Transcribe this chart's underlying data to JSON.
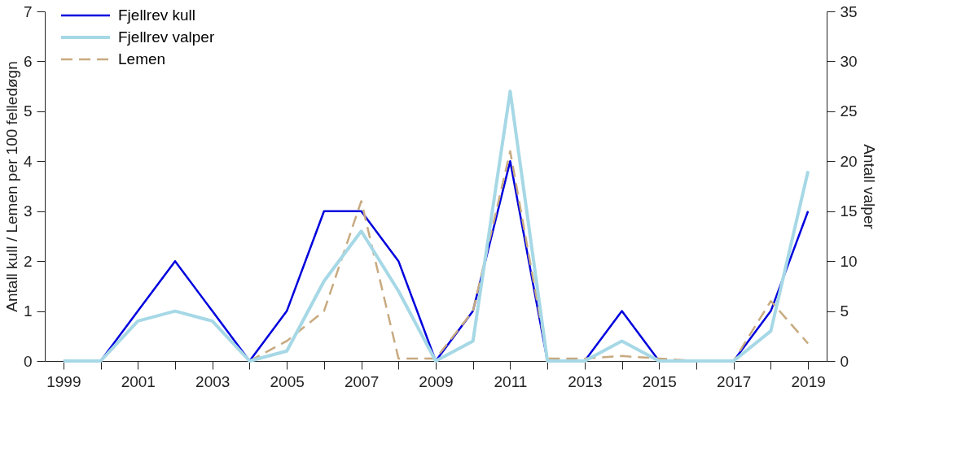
{
  "chart_data": {
    "type": "line",
    "x": [
      1999,
      2000,
      2001,
      2002,
      2003,
      2004,
      2005,
      2006,
      2007,
      2008,
      2009,
      2010,
      2011,
      2012,
      2013,
      2014,
      2015,
      2016,
      2017,
      2018,
      2019
    ],
    "ylabel": "Antall kull / Lemen per 100 felledøgn",
    "y2label": "Antall valper",
    "xlim": [
      1998.5,
      2019.5
    ],
    "xticks": [
      1999,
      {
        "value": 2000,
        "label": null
      },
      2001,
      {
        "value": 2002,
        "label": null
      },
      2003,
      {
        "value": 2004,
        "label": null
      },
      2005,
      {
        "value": 2006,
        "label": null
      },
      2007,
      {
        "value": 2008,
        "label": null
      },
      2009,
      {
        "value": 2010,
        "label": null
      },
      2011,
      {
        "value": 2012,
        "label": null
      },
      2013,
      {
        "value": 2014,
        "label": null
      },
      2015,
      {
        "value": 2016,
        "label": null
      },
      2017,
      {
        "value": 2018,
        "label": null
      },
      2019
    ],
    "ylim": [
      0,
      7
    ],
    "yticks": [
      0,
      1,
      2,
      3,
      4,
      5,
      6,
      7
    ],
    "y2lim": [
      0,
      35
    ],
    "y2ticks": [
      0,
      5,
      10,
      15,
      20,
      25,
      30,
      35
    ],
    "grid": false,
    "legend": "top left",
    "marker": "none",
    "series": [
      {
        "name": "Fjellrev kull",
        "color": "#0000dd",
        "line_style": "solid",
        "values": [
          0,
          0,
          1,
          2,
          1,
          0,
          1,
          3,
          3,
          2,
          0,
          1,
          4,
          0,
          0,
          1,
          0,
          0,
          0,
          1,
          3
        ]
      },
      {
        "name": "Fjellrev valper",
        "color": "#a6d8e6",
        "line_style": "solid",
        "axis": "y2",
        "values": [
          0,
          0,
          4,
          5,
          4,
          0,
          1,
          8,
          13,
          7,
          0,
          2,
          27,
          0,
          0,
          2,
          0,
          0,
          0,
          3,
          19
        ]
      },
      {
        "name": "Lemen",
        "color": "#c8aa80",
        "line_style": "dashed",
        "values": [
          null,
          null,
          null,
          null,
          null,
          0,
          0.4,
          1.0,
          3.2,
          0.05,
          0.05,
          1.0,
          4.2,
          0.05,
          0.05,
          0.1,
          0.05,
          0,
          0,
          1.2,
          0.35
        ]
      }
    ]
  }
}
